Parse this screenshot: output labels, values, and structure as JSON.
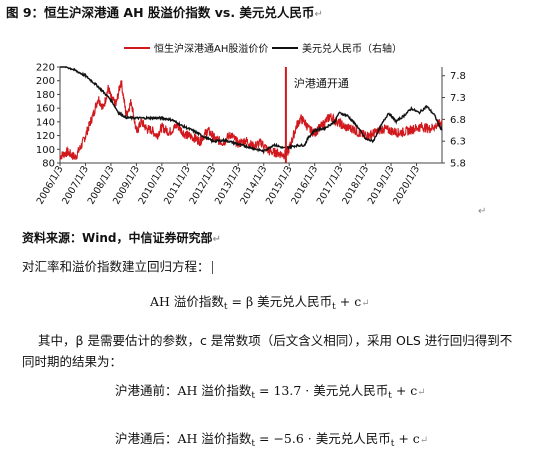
{
  "figure": {
    "title": "图 9：恒生沪深港通 AH 股溢价指数  vs.  美元兑人民币",
    "para_mark": "↵"
  },
  "chart_data": {
    "type": "line",
    "title": "",
    "legend": [
      "恒生沪深港通AH股溢价价",
      "美元兑人民币（右轴）"
    ],
    "legend_placement": "top",
    "x_tick_labels": [
      "2006/1/3",
      "2007/1/3",
      "2008/1/3",
      "2009/1/3",
      "2010/1/3",
      "2011/1/3",
      "2012/1/3",
      "2013/1/3",
      "2014/1/3",
      "2015/1/3",
      "2016/1/3",
      "2017/1/3",
      "2018/1/3",
      "2019/1/3",
      "2020/1/3"
    ],
    "y_left": {
      "ticks": [
        80,
        100,
        120,
        140,
        160,
        180,
        200,
        220
      ],
      "range": [
        80,
        220
      ]
    },
    "y_right": {
      "ticks": [
        5.8,
        6.3,
        6.8,
        7.3,
        7.8
      ],
      "range": [
        5.8,
        8.0
      ]
    },
    "annotation": {
      "text": "沪港通开通",
      "x": 2014.87
    },
    "series": [
      {
        "name": "恒生沪深港通AH股溢价价",
        "color": "#d0181d",
        "axis": "left",
        "x": [
          2006.0,
          2006.3,
          2006.6,
          2006.9,
          2007.1,
          2007.3,
          2007.5,
          2007.7,
          2007.9,
          2008.0,
          2008.2,
          2008.4,
          2008.6,
          2008.8,
          2009.0,
          2009.2,
          2009.4,
          2009.6,
          2009.8,
          2010.0,
          2010.3,
          2010.6,
          2010.9,
          2011.2,
          2011.5,
          2011.8,
          2012.1,
          2012.4,
          2012.7,
          2013.0,
          2013.3,
          2013.6,
          2013.9,
          2014.2,
          2014.5,
          2014.8,
          2014.95,
          2015.1,
          2015.3,
          2015.45,
          2015.6,
          2015.8,
          2016.0,
          2016.3,
          2016.6,
          2016.9,
          2017.2,
          2017.5,
          2017.8,
          2018.1,
          2018.4,
          2018.7,
          2019.0,
          2019.3,
          2019.6,
          2019.9,
          2020.2,
          2020.5,
          2020.8,
          2021.0
        ],
        "values": [
          90,
          96,
          88,
          110,
          130,
          150,
          175,
          160,
          190,
          175,
          165,
          200,
          150,
          170,
          125,
          140,
          130,
          128,
          120,
          132,
          125,
          135,
          122,
          118,
          112,
          128,
          115,
          110,
          122,
          108,
          113,
          104,
          110,
          97,
          95,
          92,
          96,
          112,
          135,
          145,
          140,
          128,
          124,
          135,
          148,
          140,
          132,
          130,
          122,
          120,
          125,
          130,
          127,
          124,
          126,
          130,
          133,
          130,
          135,
          140
        ]
      },
      {
        "name": "美元兑人民币（右轴）",
        "color": "#111111",
        "axis": "right",
        "x": [
          2006.0,
          2006.5,
          2007.0,
          2007.5,
          2008.0,
          2008.3,
          2008.6,
          2009.0,
          2009.5,
          2010.0,
          2010.4,
          2010.8,
          2011.2,
          2011.6,
          2012.0,
          2012.5,
          2013.0,
          2013.5,
          2014.0,
          2014.4,
          2014.8,
          2015.3,
          2015.6,
          2015.75,
          2016.0,
          2016.4,
          2016.8,
          2016.95,
          2017.3,
          2017.7,
          2018.0,
          2018.3,
          2018.6,
          2018.9,
          2019.2,
          2019.5,
          2019.8,
          2020.1,
          2020.4,
          2020.7,
          2020.9,
          2021.0
        ],
        "values": [
          8.05,
          7.95,
          7.8,
          7.55,
          7.25,
          6.95,
          6.84,
          6.83,
          6.83,
          6.83,
          6.79,
          6.65,
          6.55,
          6.42,
          6.3,
          6.32,
          6.23,
          6.15,
          6.07,
          6.22,
          6.14,
          6.2,
          6.21,
          6.38,
          6.55,
          6.6,
          6.75,
          6.95,
          6.88,
          6.62,
          6.35,
          6.3,
          6.65,
          6.95,
          6.75,
          6.88,
          7.05,
          6.95,
          7.1,
          6.9,
          6.65,
          6.55
        ]
      }
    ]
  },
  "text": {
    "source": "资料来源：Wind，中信证券研究部",
    "intro": "对汇率和溢价指数建立回归方程：",
    "eq1": {
      "lhs": "AH 溢价指数",
      "mid": " = β 美元兑人民币",
      "rhs": " + c",
      "sub": "t"
    },
    "explain1": "其中，β 是需要估计的参数，c 是常数项（后文含义相同），采用 OLS 进行回归得到不",
    "explain2": "同时期的结果为：",
    "eq2": {
      "lhs": "沪港通前：AH 溢价指数",
      "mid": " = 13.7 · 美元兑人民币",
      "rhs": " + c",
      "sub": "t"
    },
    "eq3": {
      "lhs": "沪港通后：AH 溢价指数",
      "mid": " = −5.6 · 美元兑人民币",
      "rhs": " + c",
      "sub": "t"
    },
    "return_mark": "↵"
  }
}
